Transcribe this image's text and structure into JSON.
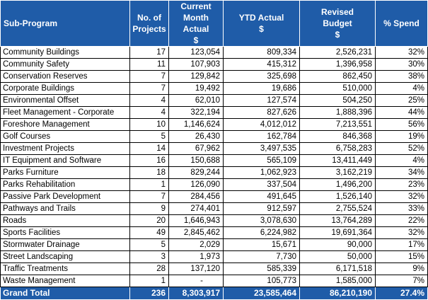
{
  "header": {
    "sub_program": "Sub-Program",
    "projects_line1": "No. of",
    "projects_line2": "Projects",
    "cma_line1": "Current",
    "cma_line2": "Month Actual",
    "cma_unit": "$",
    "ytd_line1": "YTD Actual",
    "ytd_unit": "$",
    "revised_line1": "Revised",
    "revised_line2": "Budget",
    "revised_unit": "$",
    "spend": "% Spend"
  },
  "rows": [
    {
      "name": "Community Buildings",
      "projects": "17",
      "current_month": "123,054",
      "ytd": "809,334",
      "revised": "2,526,231",
      "spend": "32%"
    },
    {
      "name": "Community Safety",
      "projects": "11",
      "current_month": "107,903",
      "ytd": "415,312",
      "revised": "1,396,958",
      "spend": "30%"
    },
    {
      "name": "Conservation Reserves",
      "projects": "7",
      "current_month": "129,842",
      "ytd": "325,698",
      "revised": "862,450",
      "spend": "38%"
    },
    {
      "name": "Corporate Buildings",
      "projects": "7",
      "current_month": "19,492",
      "ytd": "19,686",
      "revised": "510,000",
      "spend": "4%"
    },
    {
      "name": "Environmental Offset",
      "projects": "4",
      "current_month": "62,010",
      "ytd": "127,574",
      "revised": "504,250",
      "spend": "25%"
    },
    {
      "name": "Fleet Management - Corporate",
      "projects": "4",
      "current_month": "322,194",
      "ytd": "827,626",
      "revised": "1,888,396",
      "spend": "44%"
    },
    {
      "name": "Foreshore Management",
      "projects": "10",
      "current_month": "1,146,624",
      "ytd": "4,012,012",
      "revised": "7,213,551",
      "spend": "56%"
    },
    {
      "name": "Golf Courses",
      "projects": "5",
      "current_month": "26,430",
      "ytd": "162,784",
      "revised": "846,368",
      "spend": "19%"
    },
    {
      "name": "Investment Projects",
      "projects": "14",
      "current_month": "67,962",
      "ytd": "3,497,535",
      "revised": "6,758,283",
      "spend": "52%"
    },
    {
      "name": "IT Equipment and Software",
      "projects": "16",
      "current_month": "150,688",
      "ytd": "565,109",
      "revised": "13,411,449",
      "spend": "4%"
    },
    {
      "name": "Parks Furniture",
      "projects": "18",
      "current_month": "829,244",
      "ytd": "1,062,923",
      "revised": "3,162,219",
      "spend": "34%"
    },
    {
      "name": "Parks Rehabilitation",
      "projects": "1",
      "current_month": "126,090",
      "ytd": "337,504",
      "revised": "1,496,200",
      "spend": "23%"
    },
    {
      "name": "Passive Park Development",
      "projects": "7",
      "current_month": "284,456",
      "ytd": "491,645",
      "revised": "1,526,140",
      "spend": "32%"
    },
    {
      "name": "Pathways and Trails",
      "projects": "9",
      "current_month": "274,401",
      "ytd": "912,597",
      "revised": "2,755,524",
      "spend": "33%"
    },
    {
      "name": "Roads",
      "projects": "20",
      "current_month": "1,646,943",
      "ytd": "3,078,630",
      "revised": "13,764,289",
      "spend": "22%"
    },
    {
      "name": "Sports Facilities",
      "projects": "49",
      "current_month": "2,845,462",
      "ytd": "6,224,982",
      "revised": "19,691,364",
      "spend": "32%"
    },
    {
      "name": "Stormwater Drainage",
      "projects": "5",
      "current_month": "2,029",
      "ytd": "15,671",
      "revised": "90,000",
      "spend": "17%"
    },
    {
      "name": "Street Landscaping",
      "projects": "3",
      "current_month": "1,973",
      "ytd": "7,730",
      "revised": "50,000",
      "spend": "15%"
    },
    {
      "name": "Traffic Treatments",
      "projects": "28",
      "current_month": "137,120",
      "ytd": "585,339",
      "revised": "6,171,518",
      "spend": "9%"
    },
    {
      "name": "Waste Management",
      "projects": "1",
      "current_month": "-",
      "ytd": "105,773",
      "revised": "1,585,000",
      "spend": "7%"
    }
  ],
  "total": {
    "name": "Grand Total",
    "projects": "236",
    "current_month": "8,303,917",
    "ytd": "23,585,464",
    "revised": "86,210,190",
    "spend": "27.4%"
  },
  "colors": {
    "header_bg": "#1f5ca8",
    "header_text": "#ffffff"
  }
}
